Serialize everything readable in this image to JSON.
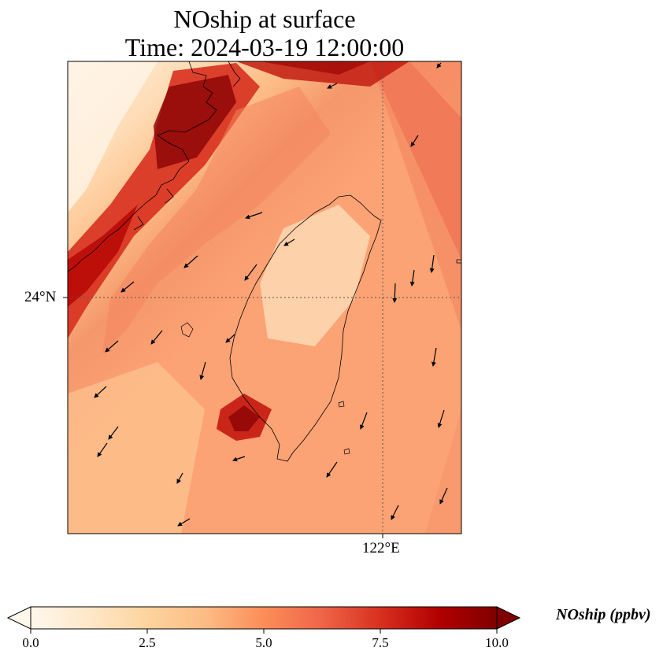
{
  "title": {
    "line1": "NOship at surface",
    "line2": "Time: 2024-03-19 12:00:00"
  },
  "map": {
    "lat_label": "24°N",
    "lon_label": "122°E",
    "gridline_color": "#555555",
    "land_outline_color": "#000000"
  },
  "colorbar": {
    "label": "NOship (ppbv)",
    "cmap": "OrRd",
    "vmin": 0.0,
    "vmax": 10.0,
    "extend": "both",
    "ticks": [
      {
        "value": 0.0,
        "label": "0.0"
      },
      {
        "value": 2.5,
        "label": "2.5"
      },
      {
        "value": 5.0,
        "label": "5.0"
      },
      {
        "value": 7.5,
        "label": "7.5"
      },
      {
        "value": 10.0,
        "label": "10.0"
      }
    ],
    "colors": [
      "#fff7ec",
      "#fee8c8",
      "#fdd49e",
      "#fdbb84",
      "#fc8d59",
      "#ef6548",
      "#d7301f",
      "#b30000",
      "#7f0000"
    ]
  }
}
